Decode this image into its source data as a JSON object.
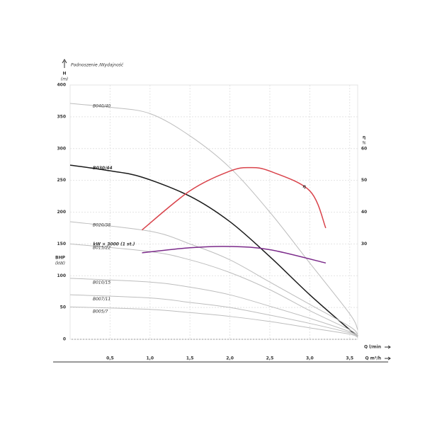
{
  "chart_data": {
    "type": "line",
    "title": "Podnoszenie /Wydajność",
    "y_label": "H",
    "y_unit": "(m)",
    "bhp_label": "BHP",
    "bhp_unit": "(kW)",
    "y2_label": "η",
    "y2_unit": "%",
    "x_label_1": "Q l/min",
    "x_label_2": "Q m³/h",
    "xlim": [
      0,
      3.6
    ],
    "xticks": [
      {
        "value": 0.5,
        "label": "0,5"
      },
      {
        "value": 1.0,
        "label": "1,0"
      },
      {
        "value": 1.5,
        "label": "1,5"
      },
      {
        "value": 2.0,
        "label": "2,0"
      },
      {
        "value": 2.5,
        "label": "2,5"
      },
      {
        "value": 3.0,
        "label": "3,0"
      },
      {
        "value": 3.5,
        "label": "3,5"
      }
    ],
    "ylim": [
      0,
      400
    ],
    "yticks": [
      0,
      50,
      100,
      150,
      200,
      250,
      300,
      350,
      400
    ],
    "y2lim": [
      0,
      80
    ],
    "y2ticks": [
      30,
      40,
      50,
      60
    ],
    "grid": true,
    "series": [
      {
        "name": "B040/40",
        "color": "#bdbdbd",
        "x": [
          0,
          0.5,
          1.0,
          1.5,
          2.0,
          2.5,
          3.0,
          3.5,
          3.6
        ],
        "values": [
          371,
          365,
          355,
          320,
          270,
          200,
          120,
          40,
          15
        ]
      },
      {
        "name": "B030/44",
        "color": "#1a1a1a",
        "x": [
          0,
          0.5,
          0.9,
          1.5,
          2.0,
          2.5,
          3.0,
          3.5,
          3.6
        ],
        "values": [
          274,
          265,
          255,
          225,
          185,
          130,
          70,
          15,
          5
        ]
      },
      {
        "name": "B020/38",
        "color": "#bdbdbd",
        "x": [
          0,
          1.0,
          1.5,
          2.0,
          2.5,
          3.0,
          3.5,
          3.6
        ],
        "values": [
          185,
          170,
          150,
          125,
          90,
          55,
          20,
          8
        ]
      },
      {
        "name": "B015/22",
        "color": "#bdbdbd",
        "x": [
          0,
          1.0,
          1.5,
          2.0,
          2.5,
          3.0,
          3.5,
          3.6
        ],
        "values": [
          150,
          138,
          125,
          105,
          78,
          45,
          15,
          6
        ]
      },
      {
        "name": "B010/15",
        "color": "#bdbdbd",
        "x": [
          0,
          1.0,
          1.5,
          2.0,
          2.5,
          3.0,
          3.5,
          3.6
        ],
        "values": [
          96,
          90,
          82,
          70,
          52,
          33,
          12,
          5
        ]
      },
      {
        "name": "B007/11",
        "color": "#bdbdbd",
        "x": [
          0,
          1.0,
          1.5,
          2.0,
          2.5,
          3.0,
          3.5,
          3.6
        ],
        "values": [
          70,
          65,
          58,
          50,
          38,
          25,
          10,
          4
        ]
      },
      {
        "name": "B005/7",
        "color": "#bdbdbd",
        "x": [
          0,
          1.0,
          1.5,
          2.0,
          2.5,
          3.0,
          3.5,
          3.6
        ],
        "values": [
          51,
          47,
          42,
          36,
          28,
          18,
          8,
          3
        ]
      },
      {
        "name": "η",
        "color": "#d9434b",
        "axis": "y2",
        "x": [
          0.9,
          1.5,
          2.0,
          2.25,
          2.5,
          3.0,
          3.2
        ],
        "values": [
          34.4,
          46.7,
          52.9,
          54,
          52.9,
          46.7,
          35
        ]
      },
      {
        "name": "kW × 3000 (1 st.)",
        "color": "#7b2a8a",
        "x": [
          0.9,
          1.5,
          2.0,
          2.5,
          3.2
        ],
        "values": [
          136,
          144,
          146,
          141,
          120
        ]
      }
    ]
  }
}
